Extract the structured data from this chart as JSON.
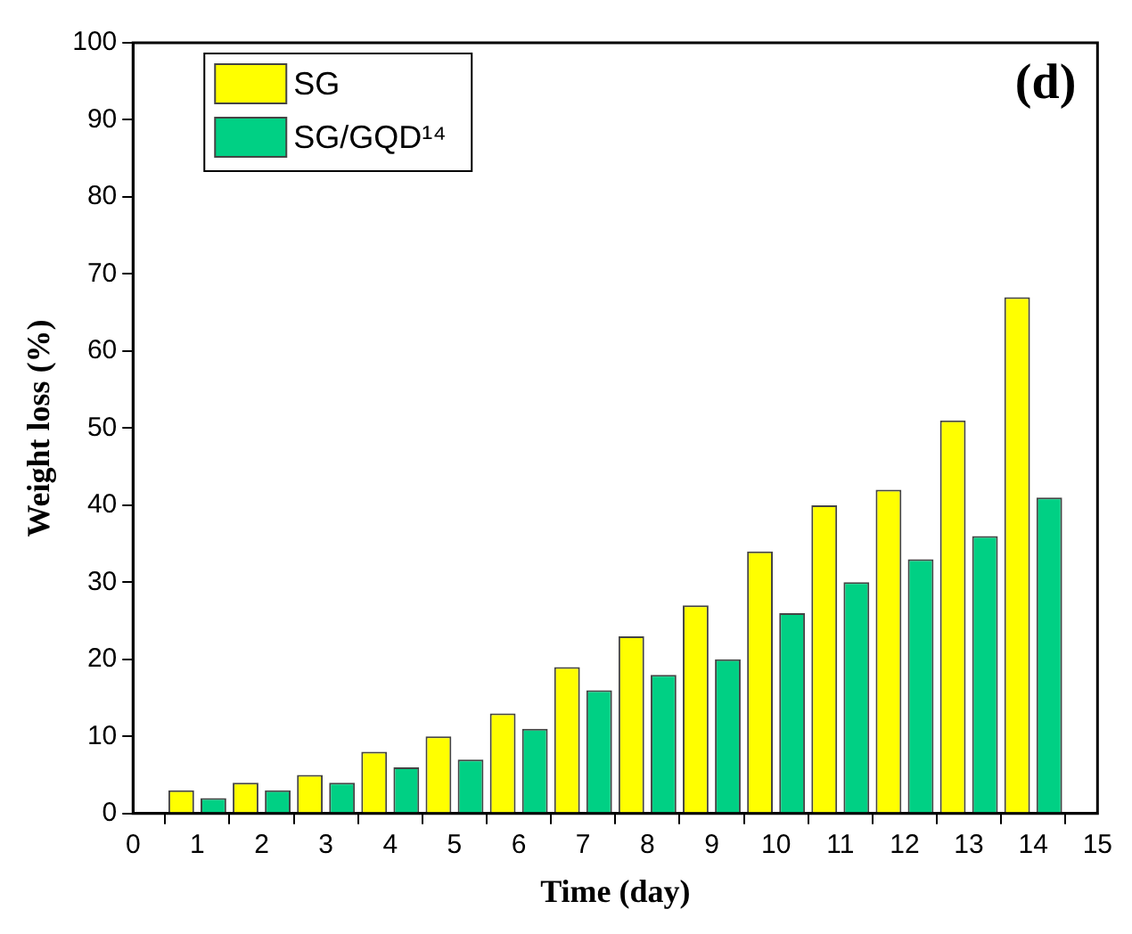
{
  "chart_data": {
    "type": "bar",
    "xlabel": "Time (day)",
    "ylabel": "Weight loss (%)",
    "annotations": [
      "(d)"
    ],
    "x": [
      1,
      2,
      3,
      4,
      5,
      6,
      7,
      8,
      9,
      10,
      11,
      12,
      13,
      14
    ],
    "series": [
      {
        "name": "SG",
        "color": "#ffff00",
        "values": [
          3,
          4,
          5,
          8,
          10,
          13,
          19,
          23,
          27,
          34,
          40,
          42,
          51,
          67
        ]
      },
      {
        "name": "SG/GQD¹⁴",
        "color": "#00d084",
        "values": [
          2,
          3,
          4,
          6,
          7,
          11,
          16,
          18,
          20,
          26,
          30,
          33,
          36,
          41
        ]
      }
    ],
    "xlim": [
      0,
      15
    ],
    "xticks": [
      0,
      1,
      2,
      3,
      4,
      5,
      6,
      7,
      8,
      9,
      10,
      11,
      12,
      13,
      14,
      15
    ],
    "ylim": [
      0,
      100
    ],
    "yticks": [
      0,
      10,
      20,
      30,
      40,
      50,
      60,
      70,
      80,
      90,
      100
    ],
    "grid": false,
    "legend": "top left"
  }
}
